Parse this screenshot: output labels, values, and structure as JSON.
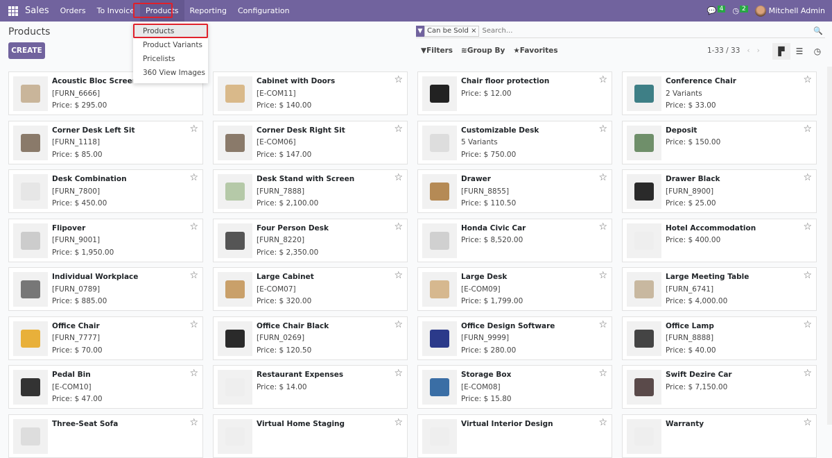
{
  "nav": {
    "app": "Sales",
    "menus": [
      "Orders",
      "To Invoice",
      "Products",
      "Reporting",
      "Configuration"
    ],
    "messages_count": "4",
    "activities_count": "2",
    "user": "Mitchell Admin"
  },
  "dropdown": {
    "items": [
      "Products",
      "Product Variants",
      "Pricelists",
      "360 View Images"
    ]
  },
  "page": {
    "title": "Products",
    "create_label": "CREATE"
  },
  "search": {
    "facet": "Can be Sold",
    "placeholder": "Search..."
  },
  "toolbar": {
    "filters": "Filters",
    "group_by": "Group By",
    "favorites": "Favorites",
    "pager": "1-33 / 33"
  },
  "colors": {
    "brand": "#71639e",
    "badge": "#28a745",
    "highlight": "#e0202a"
  },
  "products": [
    {
      "name": "Acoustic Bloc Screens",
      "sub": "[FURN_6666]",
      "price": "Price: $ 295.00",
      "color": "#c9b59a"
    },
    {
      "name": "Cabinet with Doors",
      "sub": "[E-COM11]",
      "price": "Price: $ 140.00",
      "color": "#d9b98a"
    },
    {
      "name": "Chair floor protection",
      "sub": "",
      "price": "Price: $ 12.00",
      "color": "#222222"
    },
    {
      "name": "Conference Chair",
      "sub": "2 Variants",
      "price": "Price: $ 33.00",
      "color": "#3e7f86"
    },
    {
      "name": "Corner Desk Left Sit",
      "sub": "[FURN_1118]",
      "price": "Price: $ 85.00",
      "color": "#8a7a6a"
    },
    {
      "name": "Corner Desk Right Sit",
      "sub": "[E-COM06]",
      "price": "Price: $ 147.00",
      "color": "#8a7a6a"
    },
    {
      "name": "Customizable Desk",
      "sub": "5 Variants",
      "price": "Price: $ 750.00",
      "color": "#dddddd"
    },
    {
      "name": "Deposit",
      "sub": "",
      "price": "Price: $ 150.00",
      "color": "#6f8f6a"
    },
    {
      "name": "Desk Combination",
      "sub": "[FURN_7800]",
      "price": "Price: $ 450.00",
      "color": "#e6e6e6"
    },
    {
      "name": "Desk Stand with Screen",
      "sub": "[FURN_7888]",
      "price": "Price: $ 2,100.00",
      "color": "#b5c9a8"
    },
    {
      "name": "Drawer",
      "sub": "[FURN_8855]",
      "price": "Price: $ 110.50",
      "color": "#b58a55"
    },
    {
      "name": "Drawer Black",
      "sub": "[FURN_8900]",
      "price": "Price: $ 25.00",
      "color": "#2a2a2a"
    },
    {
      "name": "Flipover",
      "sub": "[FURN_9001]",
      "price": "Price: $ 1,950.00",
      "color": "#cccccc"
    },
    {
      "name": "Four Person Desk",
      "sub": "[FURN_8220]",
      "price": "Price: $ 2,350.00",
      "color": "#555555"
    },
    {
      "name": "Honda Civic Car",
      "sub": "",
      "price": "Price: $ 8,520.00",
      "color": "#d0d0d0"
    },
    {
      "name": "Hotel Accommodation",
      "sub": "",
      "price": "Price: $ 400.00",
      "color": "#eeeeee"
    },
    {
      "name": "Individual Workplace",
      "sub": "[FURN_0789]",
      "price": "Price: $ 885.00",
      "color": "#777777"
    },
    {
      "name": "Large Cabinet",
      "sub": "[E-COM07]",
      "price": "Price: $ 320.00",
      "color": "#c9a06a"
    },
    {
      "name": "Large Desk",
      "sub": "[E-COM09]",
      "price": "Price: $ 1,799.00",
      "color": "#d6b88f"
    },
    {
      "name": "Large Meeting Table",
      "sub": "[FURN_6741]",
      "price": "Price: $ 4,000.00",
      "color": "#c8b8a0"
    },
    {
      "name": "Office Chair",
      "sub": "[FURN_7777]",
      "price": "Price: $ 70.00",
      "color": "#e8b03a"
    },
    {
      "name": "Office Chair Black",
      "sub": "[FURN_0269]",
      "price": "Price: $ 120.50",
      "color": "#2a2a2a"
    },
    {
      "name": "Office Design Software",
      "sub": "[FURN_9999]",
      "price": "Price: $ 280.00",
      "color": "#2b3a8a"
    },
    {
      "name": "Office Lamp",
      "sub": "[FURN_8888]",
      "price": "Price: $ 40.00",
      "color": "#444444"
    },
    {
      "name": "Pedal Bin",
      "sub": "[E-COM10]",
      "price": "Price: $ 47.00",
      "color": "#333333"
    },
    {
      "name": "Restaurant Expenses",
      "sub": "",
      "price": "Price: $ 14.00",
      "color": "#eeeeee"
    },
    {
      "name": "Storage Box",
      "sub": "[E-COM08]",
      "price": "Price: $ 15.80",
      "color": "#3a6ea5"
    },
    {
      "name": "Swift Dezire Car",
      "sub": "",
      "price": "Price: $ 7,150.00",
      "color": "#5a4a4a"
    },
    {
      "name": "Three-Seat Sofa",
      "sub": "",
      "price": "",
      "color": "#dddddd"
    },
    {
      "name": "Virtual Home Staging",
      "sub": "",
      "price": "",
      "color": "#eeeeee"
    },
    {
      "name": "Virtual Interior Design",
      "sub": "",
      "price": "",
      "color": "#eeeeee"
    },
    {
      "name": "Warranty",
      "sub": "",
      "price": "",
      "color": "#eeeeee"
    }
  ]
}
